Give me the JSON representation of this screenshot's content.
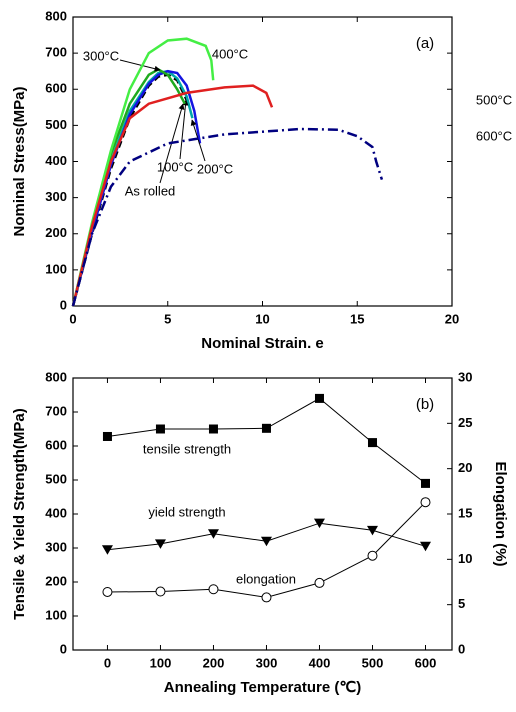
{
  "chart_data": [
    {
      "type": "line",
      "panel_label": "(a)",
      "xlabel": "Nominal Strain. e",
      "ylabel": "Nominal Stress(MPa)",
      "xlim": [
        0,
        20
      ],
      "xticks": [
        0,
        5,
        10,
        15,
        20
      ],
      "ylim": [
        0,
        800
      ],
      "yticks": [
        0,
        100,
        200,
        300,
        400,
        500,
        600,
        700,
        800
      ],
      "series": [
        {
          "name": "As rolled",
          "color": "#000000",
          "dash": "dashed",
          "x": [
            0,
            1,
            2,
            3,
            4,
            4.5,
            5,
            5.5,
            6
          ],
          "values": [
            0,
            200,
            380,
            520,
            610,
            635,
            640,
            625,
            570
          ]
        },
        {
          "name": "100°C",
          "color": "#00a8a8",
          "dash": "solid",
          "x": [
            0,
            1,
            2,
            3,
            4,
            4.5,
            5,
            5.5,
            6,
            6.3
          ],
          "values": [
            0,
            210,
            400,
            540,
            620,
            645,
            650,
            630,
            580,
            520
          ]
        },
        {
          "name": "200°C",
          "color": "#1414e0",
          "dash": "solid",
          "x": [
            0,
            1,
            2,
            3,
            4,
            4.5,
            5,
            5.5,
            6,
            6.4,
            6.7
          ],
          "values": [
            0,
            205,
            390,
            530,
            615,
            640,
            650,
            645,
            610,
            540,
            450
          ]
        },
        {
          "name": "300°C",
          "color": "#1faa1f",
          "dash": "solid",
          "x": [
            0,
            1,
            2,
            3,
            4,
            4.5,
            5,
            5.5,
            5.9
          ],
          "values": [
            0,
            220,
            420,
            560,
            640,
            655,
            640,
            600,
            560
          ]
        },
        {
          "name": "400°C",
          "color": "#44ee44",
          "dash": "solid",
          "x": [
            0,
            1,
            2,
            3,
            4,
            5,
            6,
            7,
            7.3,
            7.4
          ],
          "values": [
            0,
            230,
            430,
            600,
            700,
            735,
            740,
            720,
            680,
            625
          ]
        },
        {
          "name": "500°C",
          "color": "#e02020",
          "dash": "solid",
          "x": [
            0,
            1,
            2,
            3,
            4,
            6,
            8,
            9.5,
            10.2,
            10.5
          ],
          "values": [
            0,
            220,
            400,
            520,
            560,
            590,
            605,
            610,
            590,
            550
          ]
        },
        {
          "name": "600°C",
          "color": "#000080",
          "dash": "dashdot",
          "x": [
            0,
            1,
            2,
            3,
            5,
            8,
            12,
            14,
            15,
            15.8,
            16,
            16.3
          ],
          "values": [
            0,
            200,
            330,
            400,
            450,
            475,
            490,
            488,
            470,
            440,
            400,
            350
          ]
        }
      ]
    },
    {
      "type": "line",
      "panel_label": "(b)",
      "xlabel": "Annealing Temperature (℃)",
      "ylabel": "Tensile & Yield Strength(MPa)",
      "y2label": "Elongation (%)",
      "annotations": [
        "tensile strength",
        "yield strength",
        "elongation"
      ],
      "x": [
        0,
        100,
        200,
        300,
        400,
        500,
        600
      ],
      "xlim": [
        -65,
        650
      ],
      "xticks": [
        0,
        100,
        200,
        300,
        400,
        500,
        600
      ],
      "ylim": [
        0,
        800
      ],
      "yticks": [
        0,
        100,
        200,
        300,
        400,
        500,
        600,
        700,
        800
      ],
      "y2lim": [
        0,
        30
      ],
      "y2ticks": [
        0,
        5,
        10,
        15,
        20,
        25,
        30
      ],
      "series": [
        {
          "name": "tensile strength",
          "color": "#000000",
          "marker": "square",
          "values": [
            628,
            650,
            650,
            652,
            740,
            610,
            490
          ]
        },
        {
          "name": "yield strength",
          "color": "#000000",
          "marker": "triangle-down",
          "values": [
            295,
            312,
            342,
            320,
            373,
            352,
            305
          ]
        },
        {
          "name": "elongation",
          "color": "#000000",
          "marker": "circle-open",
          "axis": "y2",
          "values": [
            6.4,
            6.45,
            6.7,
            5.8,
            7.4,
            10.4,
            16.3
          ]
        }
      ]
    }
  ]
}
